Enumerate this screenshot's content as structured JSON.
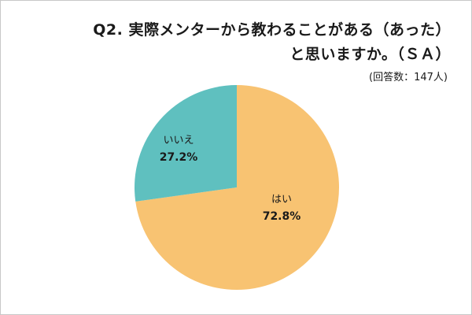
{
  "title_line1": "Q2. 実際メンターから教わることがある（あった）",
  "title_line2": "と思いますか。（ＳＡ）",
  "note": "(回答数：147人)",
  "colors": {
    "hai": "#f8c372",
    "iie": "#5fc0bf",
    "border": "#c8c8c8"
  },
  "chart_data": {
    "type": "pie",
    "slices": [
      {
        "label": "はい",
        "value": 72.8,
        "display": "72.8%",
        "color": "#f8c372"
      },
      {
        "label": "いいえ",
        "value": 27.2,
        "display": "27.2%",
        "color": "#5fc0bf"
      }
    ],
    "start_angle_deg": 0,
    "direction": "clockwise"
  }
}
